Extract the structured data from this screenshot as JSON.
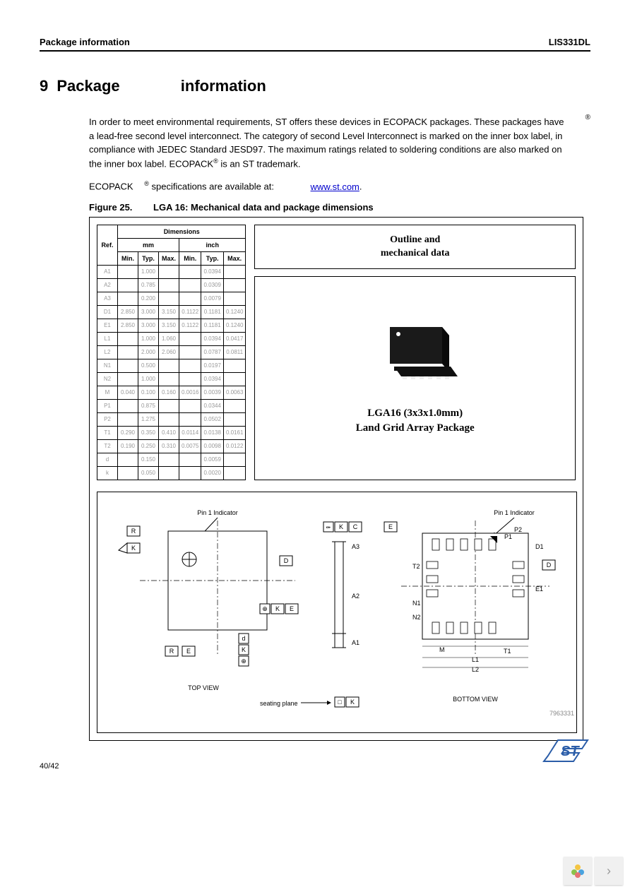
{
  "header": {
    "left": "Package information",
    "right": "LIS331DL"
  },
  "section": {
    "number": "9",
    "title": "Package",
    "title2": "information"
  },
  "paragraph": "In order to meet environmental requirements, ST offers these devices in ECOPACK packages. These packages have a lead-free second level interconnect. The category of second Level Interconnect is marked on the inner box label, in compliance with JEDEC Standard JESD97. The maximum ratings related to soldering conditions are also marked on the inner box label. ECOPACK",
  "paragraph_tail": " is an ST trademark.",
  "ecopack_prefix": "ECOPACK",
  "ecopack_line": " specifications are available at: ",
  "ecopack_link": "www.st.com",
  "figure": {
    "label": "Figure 25.",
    "title": "LGA 16: Mechanical data and package dimensions"
  },
  "table": {
    "header_dimensions": "Dimensions",
    "header_ref": "Ref.",
    "header_mm": "mm",
    "header_inch": "inch",
    "sub_min": "Min.",
    "sub_typ": "Typ.",
    "sub_max": "Max.",
    "rows": [
      {
        "ref": "A1",
        "mm_min": "",
        "mm_typ": "1.000",
        "mm_max": "",
        "in_min": "",
        "in_typ": "0.0394",
        "in_max": ""
      },
      {
        "ref": "A2",
        "mm_min": "",
        "mm_typ": "0.785",
        "mm_max": "",
        "in_min": "",
        "in_typ": "0.0309",
        "in_max": ""
      },
      {
        "ref": "A3",
        "mm_min": "",
        "mm_typ": "0.200",
        "mm_max": "",
        "in_min": "",
        "in_typ": "0.0079",
        "in_max": ""
      },
      {
        "ref": "D1",
        "mm_min": "2.850",
        "mm_typ": "3.000",
        "mm_max": "3.150",
        "in_min": "0.1122",
        "in_typ": "0.1181",
        "in_max": "0.1240"
      },
      {
        "ref": "E1",
        "mm_min": "2.850",
        "mm_typ": "3.000",
        "mm_max": "3.150",
        "in_min": "0.1122",
        "in_typ": "0.1181",
        "in_max": "0.1240"
      },
      {
        "ref": "L1",
        "mm_min": "",
        "mm_typ": "1.000",
        "mm_max": "1.060",
        "in_min": "",
        "in_typ": "0.0394",
        "in_max": "0.0417"
      },
      {
        "ref": "L2",
        "mm_min": "",
        "mm_typ": "2.000",
        "mm_max": "2.060",
        "in_min": "",
        "in_typ": "0.0787",
        "in_max": "0.0811"
      },
      {
        "ref": "N1",
        "mm_min": "",
        "mm_typ": "0.500",
        "mm_max": "",
        "in_min": "",
        "in_typ": "0.0197",
        "in_max": ""
      },
      {
        "ref": "N2",
        "mm_min": "",
        "mm_typ": "1.000",
        "mm_max": "",
        "in_min": "",
        "in_typ": "0.0394",
        "in_max": ""
      },
      {
        "ref": "M",
        "mm_min": "0.040",
        "mm_typ": "0.100",
        "mm_max": "0.160",
        "in_min": "0.0016",
        "in_typ": "0.0039",
        "in_max": "0.0063"
      },
      {
        "ref": "P1",
        "mm_min": "",
        "mm_typ": "0.875",
        "mm_max": "",
        "in_min": "",
        "in_typ": "0.0344",
        "in_max": ""
      },
      {
        "ref": "P2",
        "mm_min": "",
        "mm_typ": "1.275",
        "mm_max": "",
        "in_min": "",
        "in_typ": "0.0502",
        "in_max": ""
      },
      {
        "ref": "T1",
        "mm_min": "0.290",
        "mm_typ": "0.350",
        "mm_max": "0.410",
        "in_min": "0.0114",
        "in_typ": "0.0138",
        "in_max": "0.0161"
      },
      {
        "ref": "T2",
        "mm_min": "0.190",
        "mm_typ": "0.250",
        "mm_max": "0.310",
        "in_min": "0.0075",
        "in_typ": "0.0098",
        "in_max": "0.0122"
      },
      {
        "ref": "d",
        "mm_min": "",
        "mm_typ": "0.150",
        "mm_max": "",
        "in_min": "",
        "in_typ": "0.0059",
        "in_max": ""
      },
      {
        "ref": "k",
        "mm_min": "",
        "mm_typ": "0.050",
        "mm_max": "",
        "in_min": "",
        "in_typ": "0.0020",
        "in_max": ""
      }
    ]
  },
  "outline_box": {
    "line1": "Outline and",
    "line2": "mechanical data"
  },
  "chip_caption": {
    "line1": "LGA16 (3x3x1.0mm)",
    "line2": "Land Grid Array Package"
  },
  "drawing": {
    "pin1_indicator": "Pin 1 Indicator",
    "top_view": "TOP VIEW",
    "bottom_view": "BOTTOM VIEW",
    "seating_plane": "seating plane",
    "code": "7963331",
    "labels": [
      "R",
      "K",
      "D",
      "E",
      "C",
      "A1",
      "A2",
      "A3",
      "N1",
      "N2",
      "T1",
      "T2",
      "M",
      "L1",
      "L2",
      "D1",
      "E1",
      "P1",
      "P2"
    ]
  },
  "page_num": "40/42",
  "colors": {
    "text": "#000000",
    "faded": "#c4c4c4",
    "link": "#0000cc",
    "chip_black": "#1a1a1a",
    "st_blue": "#2b5da8",
    "widget_bg": "#f0f0f0"
  }
}
